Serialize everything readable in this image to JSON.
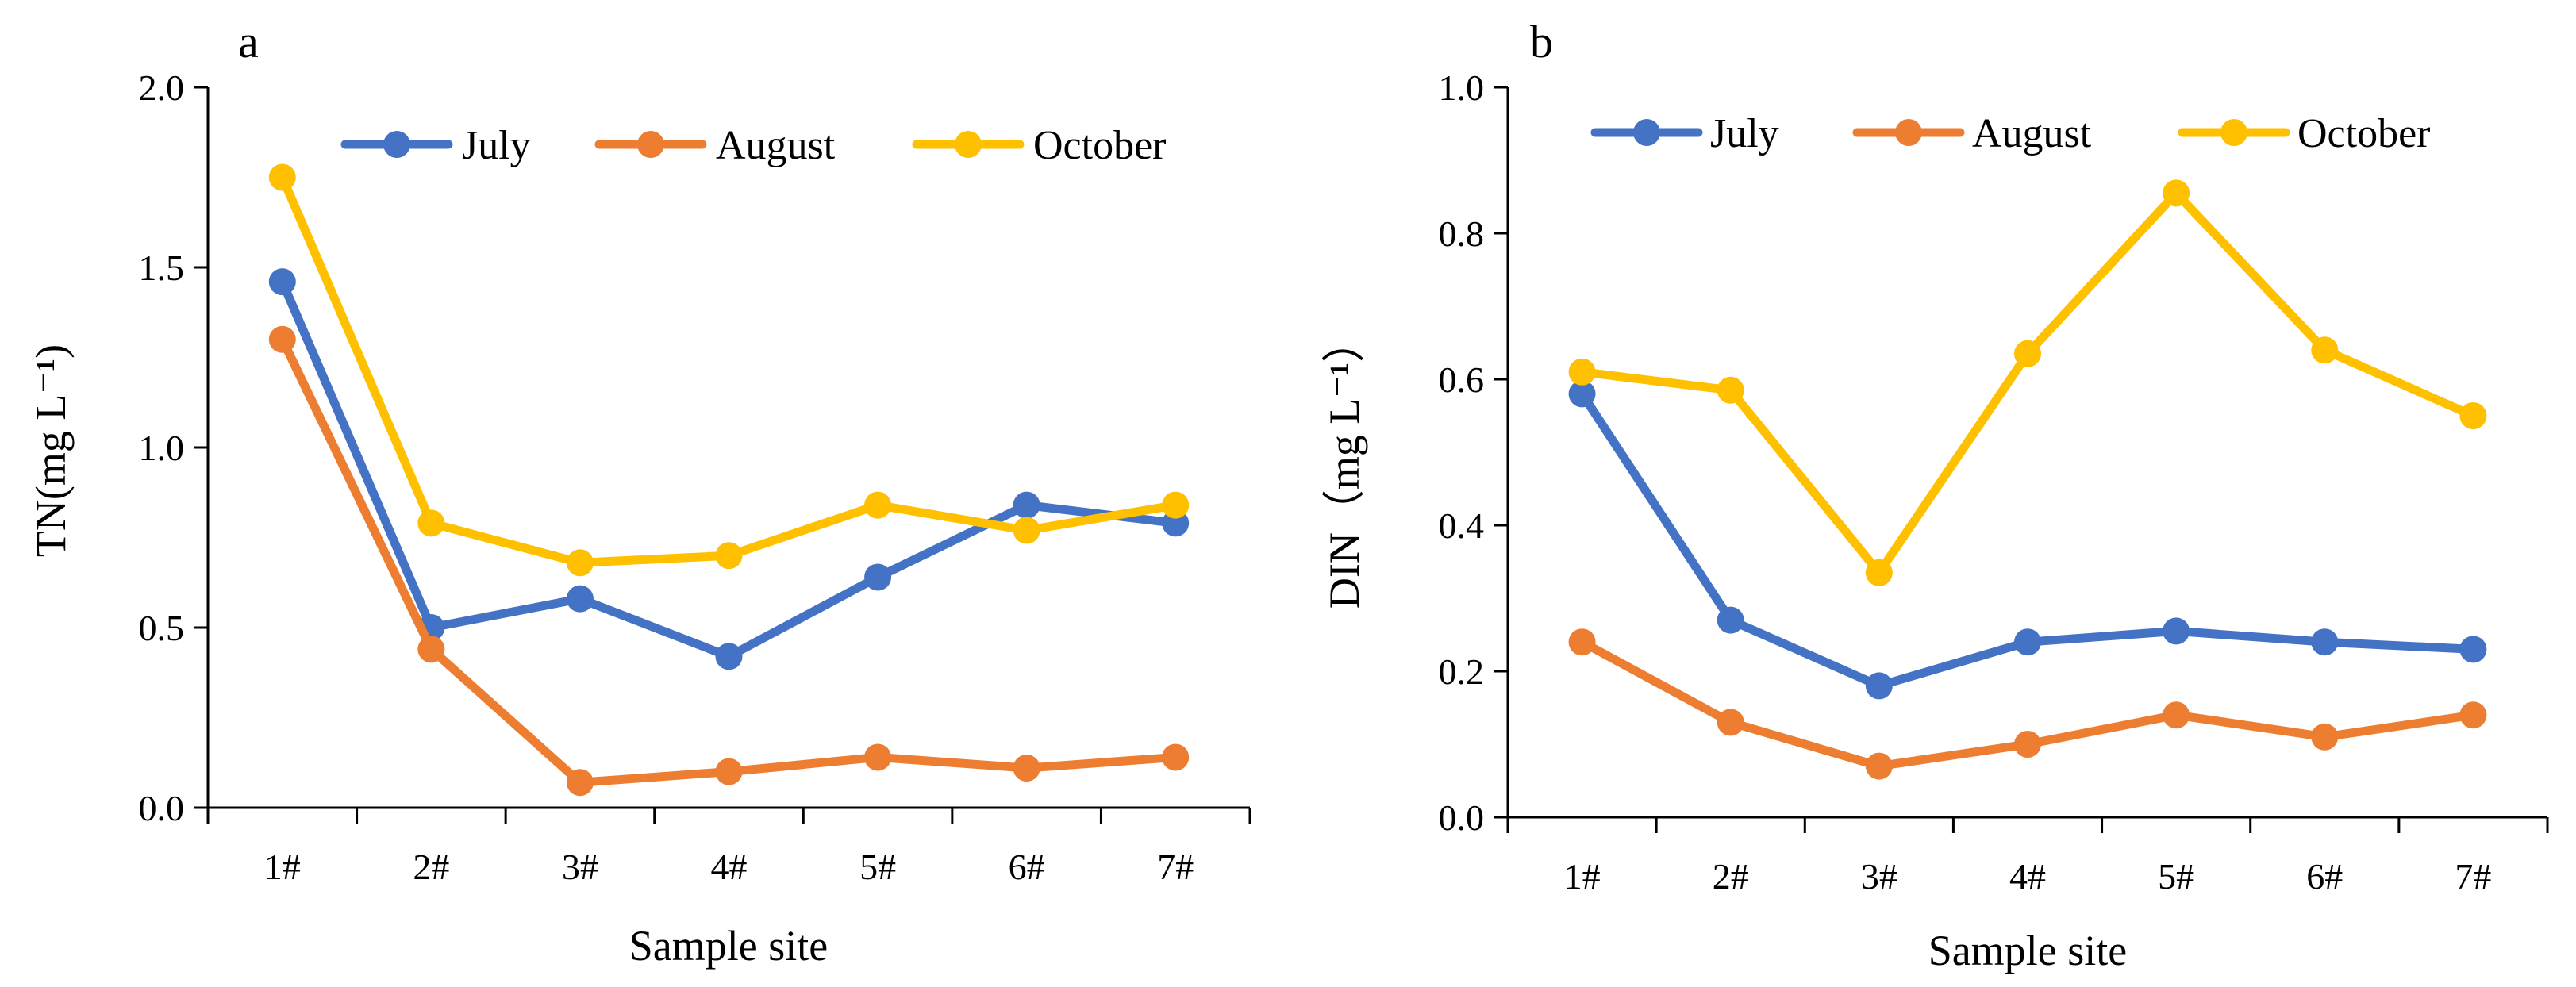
{
  "chart_data": [
    {
      "type": "line",
      "panel_label": "a",
      "xlabel": "Sample site",
      "ylabel": "TN(mg L⁻¹)",
      "categories": [
        "1#",
        "2#",
        "3#",
        "4#",
        "5#",
        "6#",
        "7#"
      ],
      "ylim": [
        0,
        2.0
      ],
      "yticks": [
        "0.0",
        "0.5",
        "1.0",
        "1.5",
        "2.0"
      ],
      "ytick_values": [
        0,
        0.5,
        1.0,
        1.5,
        2.0
      ],
      "legend_position": "top",
      "series": [
        {
          "name": "July",
          "color": "#4472C4",
          "values": [
            1.46,
            0.5,
            0.58,
            0.42,
            0.64,
            0.84,
            0.79
          ]
        },
        {
          "name": "August",
          "color": "#ED7D31",
          "values": [
            1.3,
            0.44,
            0.07,
            0.1,
            0.14,
            0.11,
            0.14
          ]
        },
        {
          "name": "October",
          "color": "#FFC000",
          "values": [
            1.75,
            0.79,
            0.68,
            0.7,
            0.84,
            0.77,
            0.84
          ]
        }
      ]
    },
    {
      "type": "line",
      "panel_label": "b",
      "xlabel": "Sample site",
      "ylabel": "DIN（mg L⁻¹）",
      "categories": [
        "1#",
        "2#",
        "3#",
        "4#",
        "5#",
        "6#",
        "7#"
      ],
      "ylim": [
        0,
        1.0
      ],
      "yticks": [
        "0.0",
        "0.2",
        "0.4",
        "0.6",
        "0.8",
        "1.0"
      ],
      "ytick_values": [
        0,
        0.2,
        0.4,
        0.6,
        0.8,
        1.0
      ],
      "legend_position": "top",
      "series": [
        {
          "name": "July",
          "color": "#4472C4",
          "values": [
            0.58,
            0.27,
            0.18,
            0.24,
            0.255,
            0.24,
            0.23
          ]
        },
        {
          "name": "August",
          "color": "#ED7D31",
          "values": [
            0.24,
            0.13,
            0.07,
            0.1,
            0.14,
            0.11,
            0.14
          ]
        },
        {
          "name": "October",
          "color": "#FFC000",
          "values": [
            0.61,
            0.585,
            0.335,
            0.635,
            0.855,
            0.64,
            0.55
          ]
        }
      ]
    }
  ]
}
